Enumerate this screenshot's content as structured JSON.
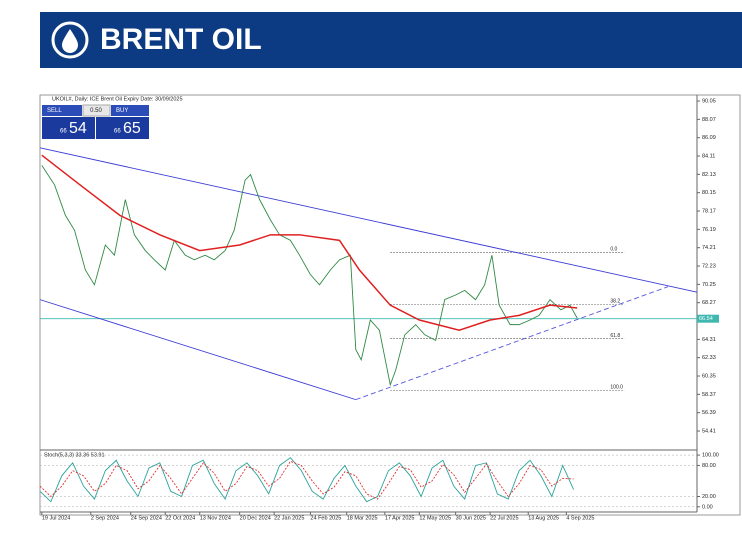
{
  "header": {
    "title": "BRENT OIL"
  },
  "trade_panel": {
    "sell": "SELL",
    "lot": "0.50",
    "buy": "BUY",
    "sell_small": "66",
    "sell_big": "54",
    "buy_small": "66",
    "buy_big": "65"
  },
  "chart_data": [
    {
      "type": "line",
      "title": "UKOIL#, Daily: ICE Brent Oil Expiry Date: 30/09/2025",
      "xlim": [
        0,
        362
      ],
      "xticks": [
        {
          "value": 1,
          "label": "19 Jul 2024"
        },
        {
          "value": 28,
          "label": "2 Sep 2024"
        },
        {
          "value": 50,
          "label": "24 Sep 2024"
        },
        {
          "value": 69,
          "label": "22 Oct 2024"
        },
        {
          "value": 88,
          "label": "13 Nov 2024"
        },
        {
          "value": 110,
          "label": "20 Dec 2024"
        },
        {
          "value": 129,
          "label": "22 Jan 2025"
        },
        {
          "value": 149,
          "label": "24 Feb 2025"
        },
        {
          "value": 169,
          "label": "18 Mar 2025"
        },
        {
          "value": 190,
          "label": "17 Apr 2025"
        },
        {
          "value": 209,
          "label": "12 May 2025"
        },
        {
          "value": 229,
          "label": "30 Jun 2025"
        },
        {
          "value": 248,
          "label": "22 Jul 2025"
        },
        {
          "value": 269,
          "label": "13 Aug 2025"
        },
        {
          "value": 290,
          "label": "4 Sep 2025"
        }
      ],
      "ylim": [
        52.36,
        90.7
      ],
      "yticks": [
        90.05,
        88.07,
        86.09,
        84.11,
        82.13,
        80.15,
        78.17,
        76.19,
        74.21,
        72.23,
        70.25,
        68.27,
        64.31,
        62.33,
        60.35,
        58.37,
        56.39,
        54.41
      ],
      "current_price": 66.54,
      "series": [
        {
          "color": "#2f8a44",
          "x": [
            1,
            8,
            14,
            19,
            25,
            30,
            36,
            41,
            47,
            52,
            58,
            63,
            69,
            74,
            80,
            85,
            91,
            96,
            102,
            107,
            113,
            116,
            121,
            127,
            132,
            138,
            143,
            149,
            154,
            160,
            165,
            171,
            174,
            177,
            182,
            187,
            193,
            196,
            201,
            207,
            212,
            218,
            223,
            229,
            234,
            240,
            245,
            249,
            253,
            259,
            264,
            270,
            275,
            281,
            287,
            292,
            296
          ],
          "values": [
            83.1,
            81.0,
            77.7,
            76.1,
            71.8,
            70.2,
            74.5,
            73.4,
            79.4,
            75.6,
            73.9,
            72.9,
            71.8,
            75.0,
            73.4,
            72.9,
            73.4,
            72.9,
            73.9,
            76.1,
            81.5,
            82.1,
            79.4,
            77.2,
            75.6,
            75.0,
            73.4,
            71.3,
            70.2,
            71.8,
            72.9,
            73.4,
            63.2,
            62.1,
            66.4,
            65.3,
            59.4,
            61.0,
            64.8,
            65.9,
            64.8,
            64.2,
            68.6,
            69.1,
            69.6,
            68.6,
            70.2,
            73.4,
            68.0,
            65.9,
            65.9,
            66.4,
            66.9,
            68.6,
            67.5,
            68.0,
            66.6
          ]
        },
        {
          "color": "#e02020",
          "x": [
            1,
            22,
            44,
            66,
            88,
            110,
            127,
            143,
            165,
            176,
            193,
            209,
            231,
            248,
            264,
            281,
            296
          ],
          "values": [
            84.2,
            81.0,
            77.7,
            75.6,
            73.9,
            74.5,
            75.6,
            75.6,
            75.0,
            71.8,
            68.0,
            66.4,
            65.3,
            66.4,
            66.9,
            68.0,
            67.7
          ]
        }
      ],
      "trendlines": [
        {
          "color": "#3b3bd6",
          "x": [
            0,
            362
          ],
          "values": [
            85.0,
            69.4
          ]
        },
        {
          "color": "#3b3bd6",
          "x": [
            0,
            174
          ],
          "values": [
            68.6,
            57.8
          ]
        },
        {
          "color": "#5555e0",
          "x": [
            174,
            346
          ],
          "values": [
            57.8,
            70.0
          ]
        }
      ],
      "fib_x": [
        193,
        322
      ],
      "fib": [
        {
          "label": "0.0",
          "value": 73.7
        },
        {
          "label": "38.2",
          "value": 68.1
        },
        {
          "label": "61.8",
          "value": 64.4
        },
        {
          "label": "100.0",
          "value": 58.8
        }
      ]
    },
    {
      "type": "line",
      "title": "Stoch(5,3,3) 33.36 53.91",
      "xlim": [
        0,
        362
      ],
      "ylim": [
        -10,
        106
      ],
      "yticks": [
        {
          "value": 100,
          "label": "100.00"
        },
        {
          "value": 80,
          "label": "80.00"
        },
        {
          "value": 20,
          "label": "20.00"
        },
        {
          "value": 0,
          "label": "0.00"
        }
      ],
      "series": [
        {
          "color": "#2aa39a",
          "x": [
            0,
            6,
            12,
            18,
            24,
            30,
            36,
            42,
            48,
            54,
            60,
            66,
            72,
            78,
            84,
            90,
            96,
            102,
            108,
            114,
            120,
            126,
            132,
            138,
            144,
            150,
            156,
            162,
            168,
            174,
            180,
            186,
            192,
            198,
            204,
            210,
            216,
            222,
            228,
            234,
            240,
            246,
            252,
            258,
            264,
            270,
            276,
            282,
            288,
            294
          ],
          "values": [
            30,
            10,
            60,
            85,
            40,
            15,
            70,
            90,
            50,
            20,
            75,
            85,
            30,
            20,
            80,
            90,
            45,
            15,
            70,
            85,
            60,
            25,
            80,
            95,
            70,
            30,
            15,
            55,
            80,
            40,
            10,
            20,
            70,
            85,
            60,
            20,
            75,
            90,
            40,
            15,
            80,
            85,
            25,
            15,
            70,
            90,
            60,
            20,
            80,
            33.36
          ]
        },
        {
          "color": "#e03030",
          "x": [
            0,
            6,
            12,
            18,
            24,
            30,
            36,
            42,
            48,
            54,
            60,
            66,
            72,
            78,
            84,
            90,
            96,
            102,
            108,
            114,
            120,
            126,
            132,
            138,
            144,
            150,
            156,
            162,
            168,
            174,
            180,
            186,
            192,
            198,
            204,
            210,
            216,
            222,
            228,
            234,
            240,
            246,
            252,
            258,
            264,
            270,
            276,
            282,
            288,
            294
          ],
          "values": [
            40,
            20,
            40,
            70,
            60,
            30,
            45,
            80,
            70,
            35,
            50,
            80,
            55,
            25,
            55,
            85,
            65,
            30,
            45,
            78,
            70,
            40,
            55,
            88,
            80,
            50,
            25,
            38,
            68,
            60,
            25,
            15,
            45,
            78,
            72,
            38,
            50,
            82,
            62,
            28,
            55,
            83,
            50,
            20,
            45,
            80,
            72,
            40,
            55,
            53.91
          ]
        }
      ]
    }
  ]
}
